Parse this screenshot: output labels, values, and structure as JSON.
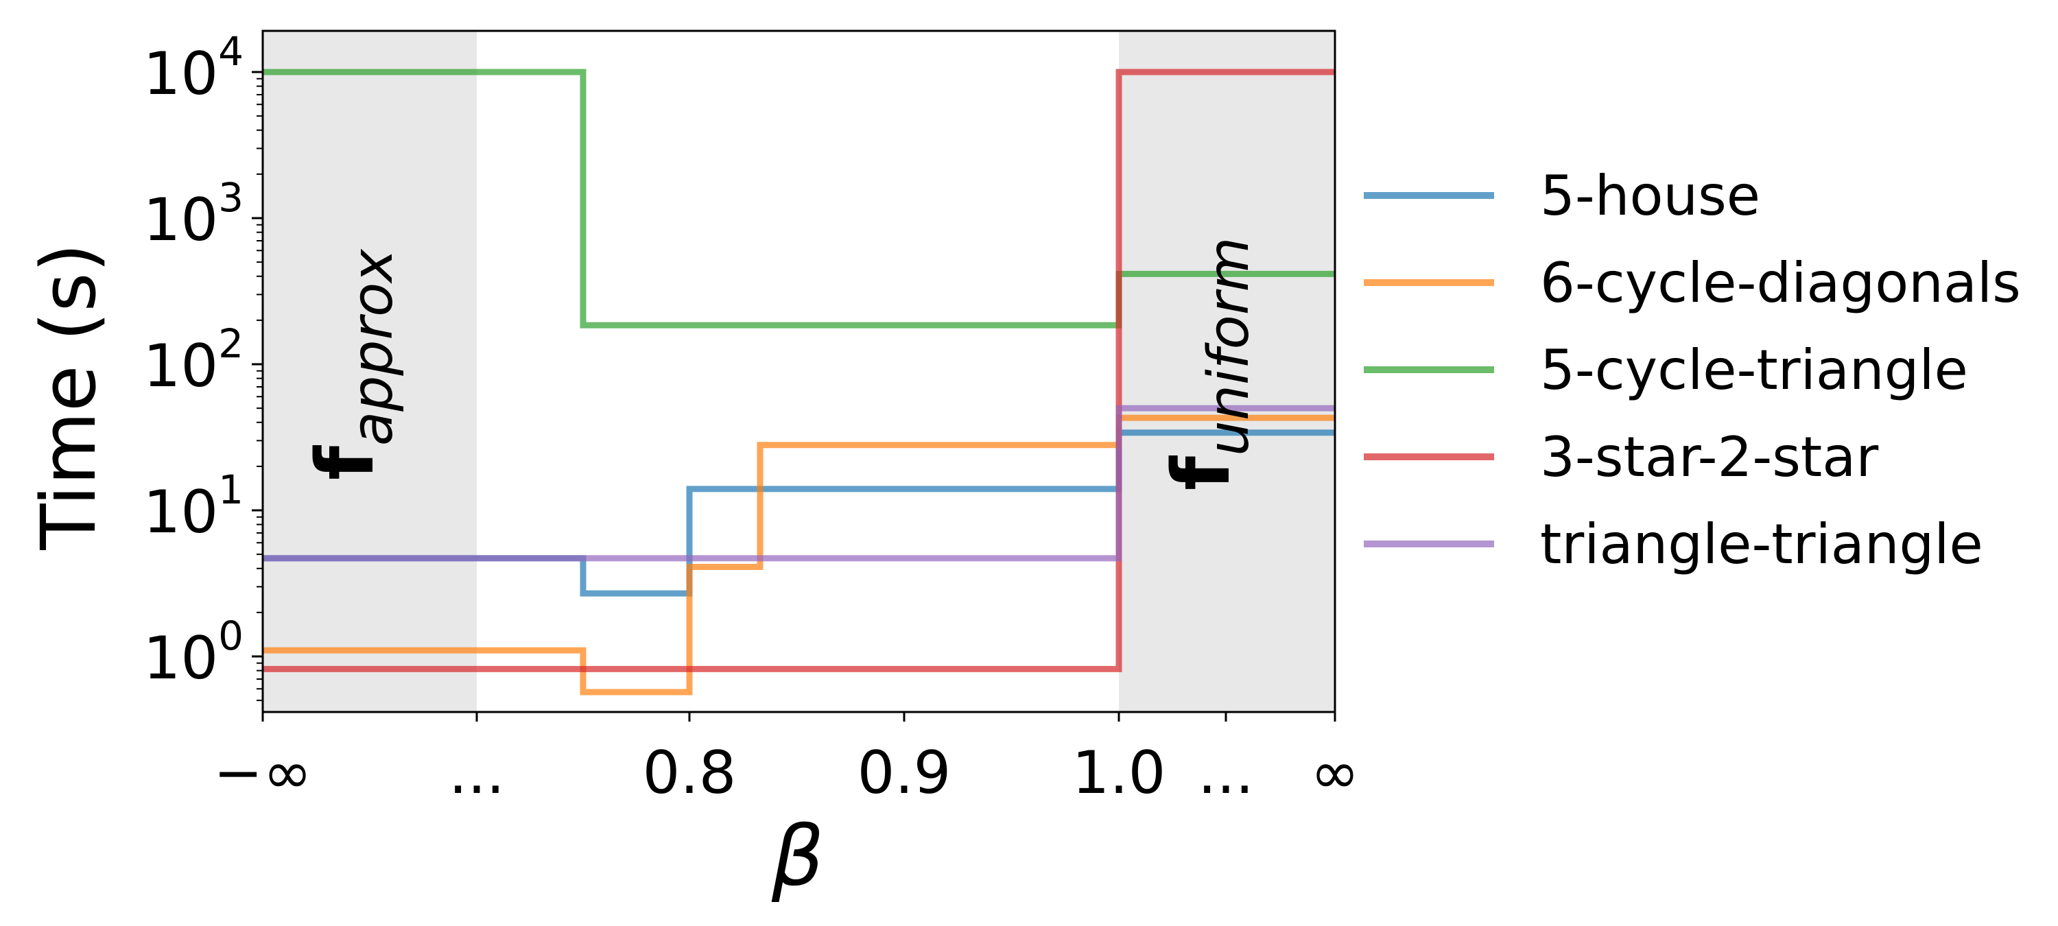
{
  "chart_data": {
    "type": "line",
    "step": true,
    "xlabel": "β",
    "ylabel": "Time (s)",
    "yscale": "log",
    "ylim": [
      0.38,
      18000
    ],
    "x_positions": [
      -1,
      0.7,
      0.75,
      0.8,
      0.833,
      0.9,
      1.0,
      1.05,
      1.1
    ],
    "x_ticks": [
      {
        "x": -1,
        "label": "−∞"
      },
      {
        "x": 0.7,
        "label": "..."
      },
      {
        "x": 0.8,
        "label": "0.8"
      },
      {
        "x": 0.9,
        "label": "0.9"
      },
      {
        "x": 1.0,
        "label": "1.0"
      },
      {
        "x": 1.05,
        "label": "..."
      },
      {
        "x": 1.1,
        "label": "∞"
      }
    ],
    "y_ticks": [
      {
        "value": 1,
        "base": "10",
        "exp": "0"
      },
      {
        "value": 10,
        "base": "10",
        "exp": "1"
      },
      {
        "value": 100,
        "base": "10",
        "exp": "2"
      },
      {
        "value": 1000,
        "base": "10",
        "exp": "3"
      },
      {
        "value": 10000,
        "base": "10",
        "exp": "4"
      }
    ],
    "shaded_regions": [
      {
        "from": -1,
        "to": 0.7,
        "label_main": "f",
        "label_sub": "approx"
      },
      {
        "from": 1.0,
        "to": 1.1,
        "label_main": "f",
        "label_sub": "uniform"
      }
    ],
    "series": [
      {
        "name": "5-house",
        "color": "#1f77b4",
        "points": [
          [
            -1,
            4.7
          ],
          [
            0.75,
            2.7
          ],
          [
            0.8,
            14
          ],
          [
            1.0,
            34
          ],
          [
            1.1,
            34
          ]
        ]
      },
      {
        "name": "6-cycle-diagonals",
        "color": "#ff7f0e",
        "points": [
          [
            -1,
            1.1
          ],
          [
            0.75,
            0.57
          ],
          [
            0.8,
            4.1
          ],
          [
            0.833,
            28
          ],
          [
            1.0,
            43
          ],
          [
            1.1,
            43
          ]
        ]
      },
      {
        "name": "5-cycle-triangle",
        "color": "#2ca02c",
        "points": [
          [
            -1,
            10000
          ],
          [
            0.75,
            185
          ],
          [
            1.0,
            415
          ],
          [
            1.1,
            415
          ]
        ]
      },
      {
        "name": "3-star-2-star",
        "color": "#d62728",
        "points": [
          [
            -1,
            0.82
          ],
          [
            1.0,
            10000
          ],
          [
            1.1,
            10000
          ]
        ]
      },
      {
        "name": "triangle-triangle",
        "color": "#9467bd",
        "points": [
          [
            -1,
            4.7
          ],
          [
            1.0,
            50
          ],
          [
            1.1,
            50
          ]
        ]
      }
    ]
  }
}
